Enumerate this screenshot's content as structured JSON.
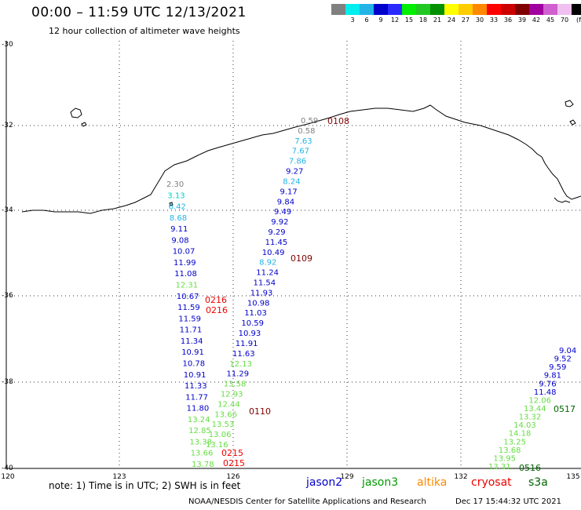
{
  "title": "00:00 – 11:59 UTC 12/13/2021",
  "subtitle": "12 hour collection of altimeter wave heights",
  "legend": {
    "unit": "(ft)",
    "bins": [
      {
        "label": "",
        "color": "#808080"
      },
      {
        "label": "3",
        "color": "#00eeee"
      },
      {
        "label": "6",
        "color": "#22b4e6"
      },
      {
        "label": "9",
        "color": "#0000cd"
      },
      {
        "label": "12",
        "color": "#2a2aff"
      },
      {
        "label": "15",
        "color": "#00ee00"
      },
      {
        "label": "18",
        "color": "#22c822"
      },
      {
        "label": "21",
        "color": "#009000"
      },
      {
        "label": "24",
        "color": "#ffff00"
      },
      {
        "label": "27",
        "color": "#ffcc00"
      },
      {
        "label": "30",
        "color": "#ff8800"
      },
      {
        "label": "33",
        "color": "#ff0000"
      },
      {
        "label": "36",
        "color": "#cc0000"
      },
      {
        "label": "39",
        "color": "#800000"
      },
      {
        "label": "42",
        "color": "#a000a0"
      },
      {
        "label": "45",
        "color": "#d060d0"
      },
      {
        "label": "70",
        "color": "#f0c0f0"
      },
      {
        "label": "",
        "color": "#000000"
      }
    ]
  },
  "map": {
    "lat_ticks": [
      "-30",
      "-32",
      "-34",
      "-36",
      "-38",
      "-40"
    ],
    "lon_ticks": [
      "120",
      "123",
      "126",
      "129",
      "132",
      "135"
    ]
  },
  "passes": [
    {
      "label": "0108",
      "color": "#800000"
    },
    {
      "label": "0109",
      "color": "#800000"
    },
    {
      "label": "0216",
      "color": "#ee0000"
    },
    {
      "label": "0216",
      "color": "#ee0000"
    },
    {
      "label": "0110",
      "color": "#800000"
    },
    {
      "label": "0215",
      "color": "#ee0000"
    },
    {
      "label": "0215",
      "color": "#ee0000"
    },
    {
      "label": "0517",
      "color": "#006400"
    },
    {
      "label": "0516",
      "color": "#006400"
    }
  ],
  "track_0108": [
    {
      "v": "0.59",
      "c": "#808080"
    },
    {
      "v": "0.58",
      "c": "#808080"
    },
    {
      "v": "7.63",
      "c": "#22b4e6"
    },
    {
      "v": "7.67",
      "c": "#22b4e6"
    },
    {
      "v": "7.86",
      "c": "#22b4e6"
    },
    {
      "v": "9.27",
      "c": "#0000cd"
    },
    {
      "v": "8.24",
      "c": "#22b4e6"
    },
    {
      "v": "9.17",
      "c": "#0000cd"
    },
    {
      "v": "9.84",
      "c": "#0000cd"
    },
    {
      "v": "9.49",
      "c": "#0000cd"
    },
    {
      "v": "9.92",
      "c": "#0000cd"
    },
    {
      "v": "9.29",
      "c": "#0000cd"
    },
    {
      "v": "11.45",
      "c": "#0000cd"
    },
    {
      "v": "10.49",
      "c": "#0000cd"
    },
    {
      "v": "8.92",
      "c": "#22b4e6"
    },
    {
      "v": "11.24",
      "c": "#0000cd"
    },
    {
      "v": "11.54",
      "c": "#0000cd"
    },
    {
      "v": "11.93",
      "c": "#0000cd"
    },
    {
      "v": "10.98",
      "c": "#0000cd"
    },
    {
      "v": "11.03",
      "c": "#0000cd"
    },
    {
      "v": "10.59",
      "c": "#0000cd"
    },
    {
      "v": "10.93",
      "c": "#0000cd"
    },
    {
      "v": "11.91",
      "c": "#0000cd"
    },
    {
      "v": "11.63",
      "c": "#0000cd"
    },
    {
      "v": "12.13",
      "c": "#66dd44"
    },
    {
      "v": "11.29",
      "c": "#0000cd"
    },
    {
      "v": "13.58",
      "c": "#66dd44"
    },
    {
      "v": "12.93",
      "c": "#66dd44"
    },
    {
      "v": "12.44",
      "c": "#66dd44"
    },
    {
      "v": "13.66",
      "c": "#66dd44"
    },
    {
      "v": "13.53",
      "c": "#66dd44"
    },
    {
      "v": "13.06",
      "c": "#66dd44"
    },
    {
      "v": "13.16",
      "c": "#66dd44"
    }
  ],
  "track_0216": [
    {
      "v": "2.30",
      "c": "#808080"
    },
    {
      "v": "3.13",
      "c": "#00cccc"
    },
    {
      "v": "6.42",
      "c": "#22b4e6"
    },
    {
      "v": "8.68",
      "c": "#22b4e6"
    },
    {
      "v": "9.11",
      "c": "#0000cd"
    },
    {
      "v": "9.08",
      "c": "#0000cd"
    },
    {
      "v": "10.07",
      "c": "#0000cd"
    },
    {
      "v": "11.99",
      "c": "#0000cd"
    },
    {
      "v": "11.08",
      "c": "#0000cd"
    },
    {
      "v": "12.31",
      "c": "#66dd44"
    },
    {
      "v": "10.67",
      "c": "#0000cd"
    },
    {
      "v": "11.59",
      "c": "#0000cd"
    },
    {
      "v": "11.59",
      "c": "#0000cd"
    },
    {
      "v": "11.71",
      "c": "#0000cd"
    },
    {
      "v": "11.34",
      "c": "#0000cd"
    },
    {
      "v": "10.91",
      "c": "#0000cd"
    },
    {
      "v": "10.78",
      "c": "#0000cd"
    },
    {
      "v": "10.91",
      "c": "#0000cd"
    },
    {
      "v": "11.33",
      "c": "#0000cd"
    },
    {
      "v": "11.77",
      "c": "#0000cd"
    },
    {
      "v": "11.80",
      "c": "#0000cd"
    },
    {
      "v": "13.24",
      "c": "#66dd44"
    },
    {
      "v": "12.85",
      "c": "#66dd44"
    },
    {
      "v": "13.38",
      "c": "#66dd44"
    },
    {
      "v": "13.66",
      "c": "#66dd44"
    },
    {
      "v": "13.78",
      "c": "#66dd44"
    }
  ],
  "track_0517": [
    {
      "v": "9.04",
      "c": "#0000cd"
    },
    {
      "v": "9.52",
      "c": "#0000cd"
    },
    {
      "v": "9.59",
      "c": "#0000cd"
    },
    {
      "v": "9.81",
      "c": "#0000cd"
    },
    {
      "v": "9.76",
      "c": "#0000cd"
    },
    {
      "v": "11.48",
      "c": "#0000cd"
    },
    {
      "v": "12.06",
      "c": "#66dd44"
    },
    {
      "v": "13.44",
      "c": "#66dd44"
    },
    {
      "v": "13.32",
      "c": "#66dd44"
    },
    {
      "v": "14.03",
      "c": "#66dd44"
    },
    {
      "v": "14.18",
      "c": "#66dd44"
    },
    {
      "v": "13.25",
      "c": "#66dd44"
    },
    {
      "v": "13.68",
      "c": "#66dd44"
    },
    {
      "v": "13.95",
      "c": "#66dd44"
    },
    {
      "v": "13.31",
      "c": "#66dd44"
    }
  ],
  "footer": {
    "note": "note: 1) Time is in UTC; 2) SWH is in feet",
    "satellites": [
      {
        "name": "jason2",
        "color": "#0000cc"
      },
      {
        "name": "jason3",
        "color": "#009900"
      },
      {
        "name": "altika",
        "color": "#ff8800"
      },
      {
        "name": "cryosat",
        "color": "#ee0000"
      },
      {
        "name": "s3a",
        "color": "#006400"
      }
    ],
    "credit": "NOAA/NESDIS Center for Satellite Applications and Research",
    "timestamp": "Dec 17 15:44:32 UTC 2021"
  }
}
